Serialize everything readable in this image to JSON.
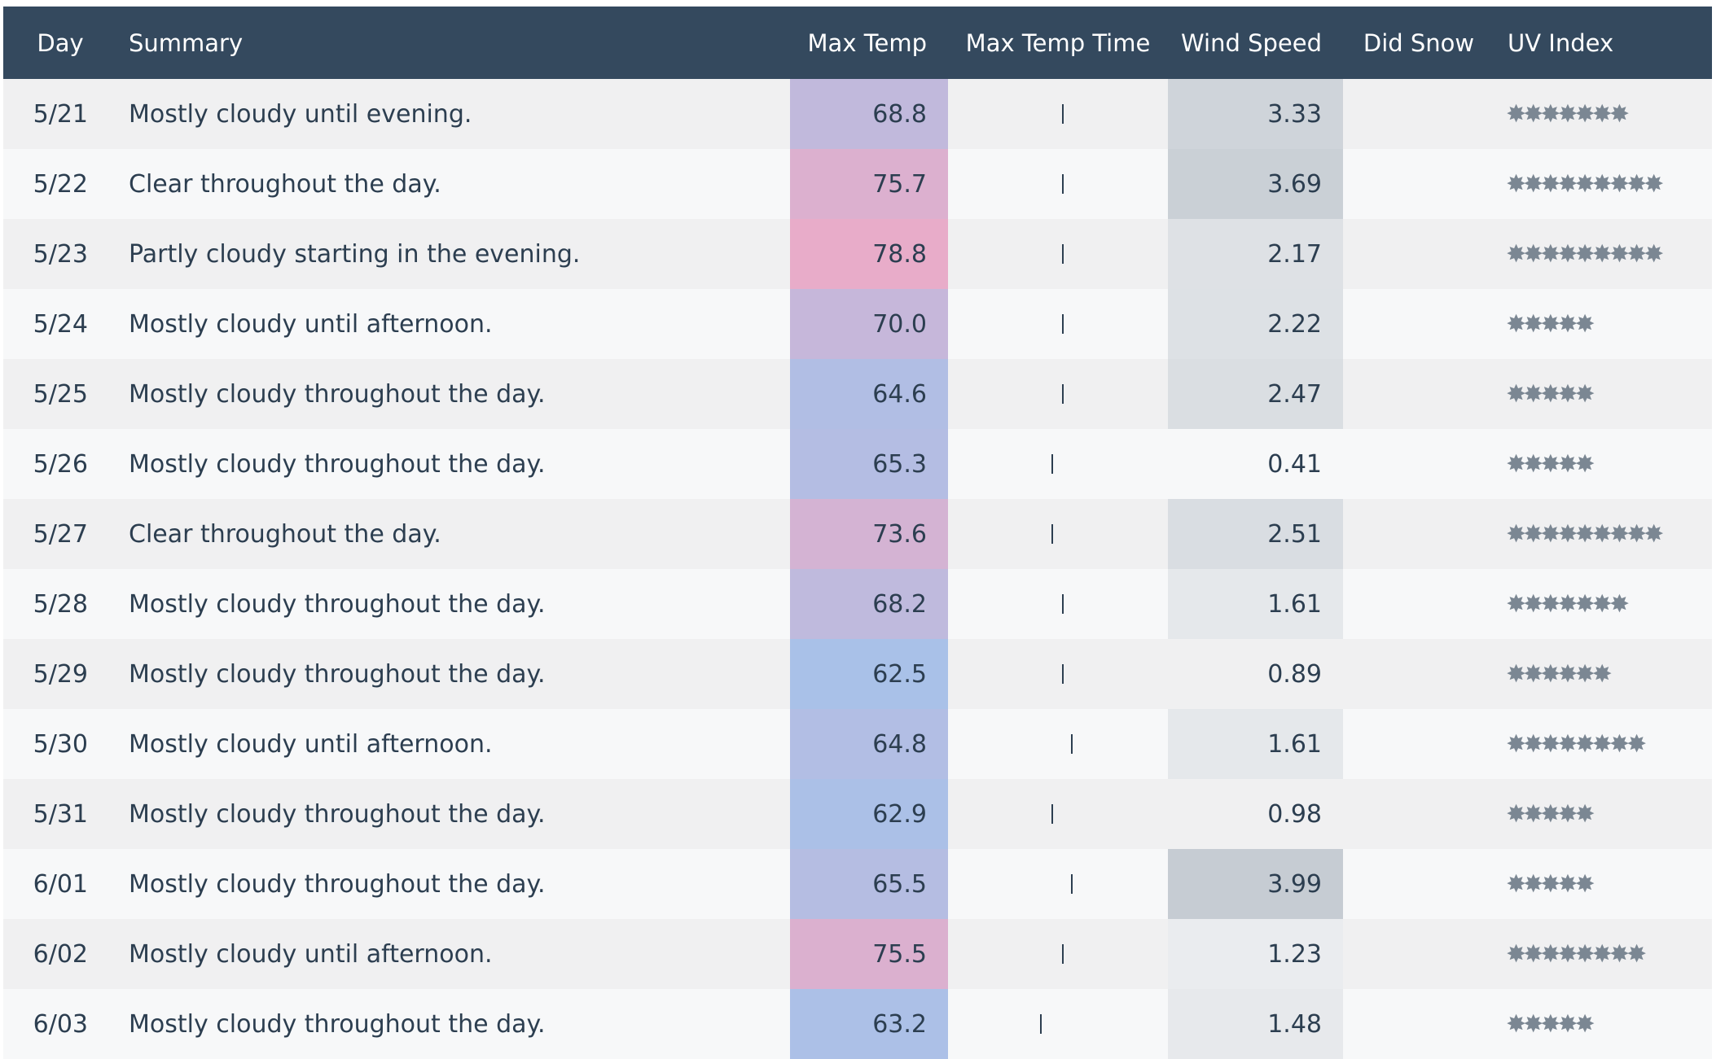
{
  "table": {
    "headers": {
      "day": "Day",
      "summary": "Summary",
      "max_temp": "Max Temp",
      "max_temp_time": "Max Temp Time",
      "wind_speed": "Wind Speed",
      "did_snow": "Did Snow",
      "uv_index": "UV Index"
    },
    "colors": {
      "header_bg": "#34495e",
      "row_odd": "#f0f0f1",
      "row_even": "#f7f8f9",
      "temp_cold": "#a9c1e8",
      "temp_warm": "#e8acc9",
      "wind_low": "#f5f6f7",
      "wind_high": "#c6ccd3"
    },
    "rows": [
      {
        "day": "5/21",
        "summary": "Mostly cloudy until evening.",
        "max_temp": "68.8",
        "time_tick": 0.52,
        "wind_speed": "3.33",
        "did_snow": "",
        "uv_index": "✸✸✸✸✸✸✸"
      },
      {
        "day": "5/22",
        "summary": "Clear throughout the day.",
        "max_temp": "75.7",
        "time_tick": 0.52,
        "wind_speed": "3.69",
        "did_snow": "",
        "uv_index": "✸✸✸✸✸✸✸✸✸"
      },
      {
        "day": "5/23",
        "summary": "Partly cloudy starting in the evening.",
        "max_temp": "78.8",
        "time_tick": 0.52,
        "wind_speed": "2.17",
        "did_snow": "",
        "uv_index": "✸✸✸✸✸✸✸✸✸"
      },
      {
        "day": "5/24",
        "summary": "Mostly cloudy until afternoon.",
        "max_temp": "70.0",
        "time_tick": 0.52,
        "wind_speed": "2.22",
        "did_snow": "",
        "uv_index": "✸✸✸✸✸"
      },
      {
        "day": "5/25",
        "summary": "Mostly cloudy throughout the day.",
        "max_temp": "64.6",
        "time_tick": 0.52,
        "wind_speed": "2.47",
        "did_snow": "",
        "uv_index": "✸✸✸✸✸"
      },
      {
        "day": "5/26",
        "summary": "Mostly cloudy throughout the day.",
        "max_temp": "65.3",
        "time_tick": 0.47,
        "wind_speed": "0.41",
        "did_snow": "",
        "uv_index": "✸✸✸✸✸"
      },
      {
        "day": "5/27",
        "summary": "Clear throughout the day.",
        "max_temp": "73.6",
        "time_tick": 0.47,
        "wind_speed": "2.51",
        "did_snow": "",
        "uv_index": "✸✸✸✸✸✸✸✸✸"
      },
      {
        "day": "5/28",
        "summary": "Mostly cloudy throughout the day.",
        "max_temp": "68.2",
        "time_tick": 0.52,
        "wind_speed": "1.61",
        "did_snow": "",
        "uv_index": "✸✸✸✸✸✸✸"
      },
      {
        "day": "5/29",
        "summary": "Mostly cloudy throughout the day.",
        "max_temp": "62.5",
        "time_tick": 0.52,
        "wind_speed": "0.89",
        "did_snow": "",
        "uv_index": "✸✸✸✸✸✸"
      },
      {
        "day": "5/30",
        "summary": "Mostly cloudy until afternoon.",
        "max_temp": "64.8",
        "time_tick": 0.56,
        "wind_speed": "1.61",
        "did_snow": "",
        "uv_index": "✸✸✸✸✸✸✸✸"
      },
      {
        "day": "5/31",
        "summary": "Mostly cloudy throughout the day.",
        "max_temp": "62.9",
        "time_tick": 0.47,
        "wind_speed": "0.98",
        "did_snow": "",
        "uv_index": "✸✸✸✸✸"
      },
      {
        "day": "6/01",
        "summary": "Mostly cloudy throughout the day.",
        "max_temp": "65.5",
        "time_tick": 0.56,
        "wind_speed": "3.99",
        "did_snow": "",
        "uv_index": "✸✸✸✸✸"
      },
      {
        "day": "6/02",
        "summary": "Mostly cloudy until afternoon.",
        "max_temp": "75.5",
        "time_tick": 0.52,
        "wind_speed": "1.23",
        "did_snow": "",
        "uv_index": "✸✸✸✸✸✸✸✸"
      },
      {
        "day": "6/03",
        "summary": "Mostly cloudy throughout the day.",
        "max_temp": "63.2",
        "time_tick": 0.42,
        "wind_speed": "1.48",
        "did_snow": "",
        "uv_index": "✸✸✸✸✸"
      }
    ]
  }
}
